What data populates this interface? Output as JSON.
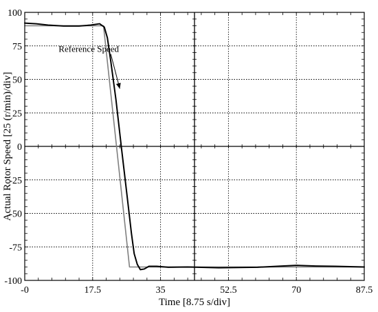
{
  "chart_data": {
    "type": "line",
    "xlabel": "Time [8.75 s/div]",
    "ylabel": "Actual Rotor Speed [25 (r/min)/div]",
    "xlim": [
      0,
      87.5
    ],
    "ylim": [
      -100,
      100
    ],
    "x_ticks": [
      0,
      17.5,
      35,
      52.5,
      70,
      87.5
    ],
    "x_tick_labels": [
      "-0",
      "17.5",
      "35",
      "52.5",
      "70",
      "87.5"
    ],
    "y_ticks": [
      100,
      75,
      50,
      25,
      0,
      -25,
      -50,
      -75,
      -100
    ],
    "y_tick_labels": [
      "100",
      "75",
      "50",
      "25",
      "0",
      "-25",
      "-50",
      "-75",
      "-100"
    ],
    "grid": true,
    "minor_ticks": true,
    "series": [
      {
        "name": "Reference Speed",
        "color": "#7f7f7f",
        "x": [
          0,
          20.3,
          27.0,
          87.5
        ],
        "y": [
          90,
          90,
          -90,
          -90
        ]
      },
      {
        "name": "",
        "color": "#000000",
        "x": [
          0,
          3,
          6,
          10,
          14,
          17,
          19.3,
          20.5,
          21.3,
          22.2,
          23.5,
          25.0,
          26.5,
          27.5,
          28.2,
          29.0,
          29.8,
          30.8,
          32.0,
          34.0,
          37.0,
          42.0,
          50.0,
          60.0,
          65.0,
          70.0,
          75.0,
          80.0,
          87.5
        ],
        "y": [
          92,
          91.5,
          90.5,
          89.8,
          89.8,
          90.5,
          91.5,
          89,
          81,
          63,
          35,
          -3,
          -40,
          -65,
          -80,
          -88,
          -92,
          -91.5,
          -89.5,
          -89.5,
          -90.2,
          -90,
          -90.6,
          -90.2,
          -89.5,
          -88.8,
          -89.3,
          -89.5,
          -90
        ]
      }
    ],
    "annotations": [
      {
        "text": "Reference Speed",
        "at_data": [
          24.5,
          43
        ],
        "text_data": [
          16.5,
          73
        ]
      }
    ]
  }
}
